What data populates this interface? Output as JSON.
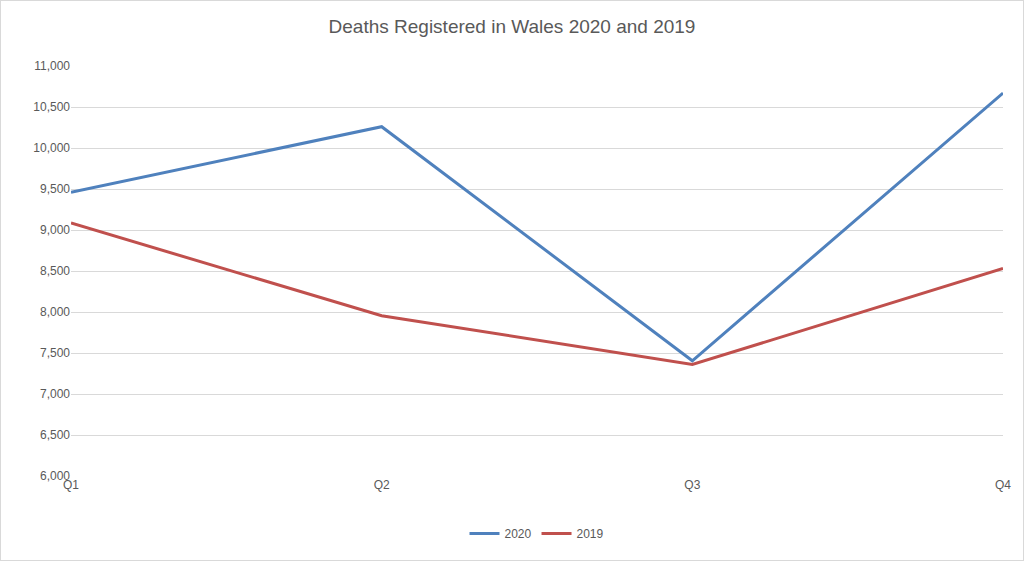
{
  "chart_data": {
    "type": "line",
    "title": "Deaths Registered in Wales 2020 and 2019",
    "categories": [
      "Q1",
      "Q2",
      "Q3",
      "Q4"
    ],
    "series": [
      {
        "name": "2020",
        "color": "#4f81bd",
        "values": [
          9460,
          10260,
          7405,
          10670
        ]
      },
      {
        "name": "2019",
        "color": "#c0504d",
        "values": [
          9085,
          7955,
          7360,
          8530
        ]
      }
    ],
    "ylim": [
      6000,
      11000
    ],
    "yticks": [
      {
        "value": 6000,
        "label": "6,000"
      },
      {
        "value": 6500,
        "label": "6,500"
      },
      {
        "value": 7000,
        "label": "7,000"
      },
      {
        "value": 7500,
        "label": "7,500"
      },
      {
        "value": 8000,
        "label": "8,000"
      },
      {
        "value": 8500,
        "label": "8,500"
      },
      {
        "value": 9000,
        "label": "9,000"
      },
      {
        "value": 9500,
        "label": "9,500"
      },
      {
        "value": 10000,
        "label": "10,000"
      },
      {
        "value": 10500,
        "label": "10,500"
      },
      {
        "value": 11000,
        "label": "11,000"
      }
    ],
    "grid": true,
    "legend": "bottom"
  }
}
